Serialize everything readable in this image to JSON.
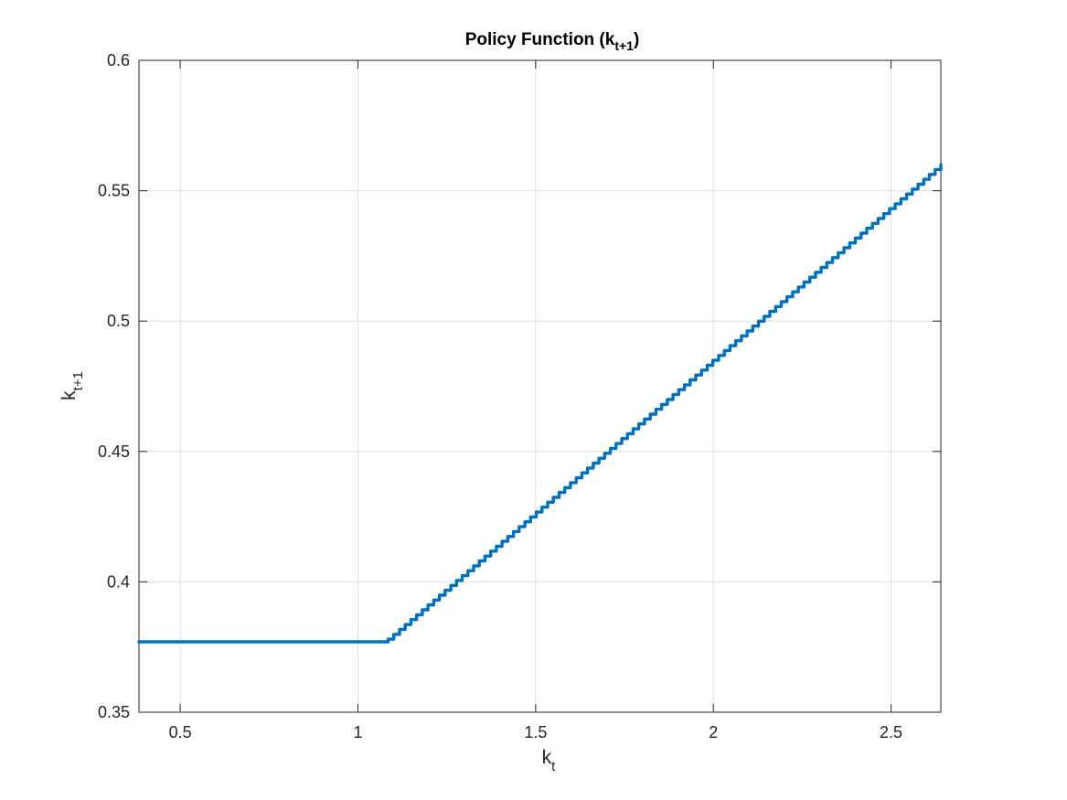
{
  "chart_data": {
    "type": "line",
    "title": {
      "main": "Policy Function (k",
      "sub": "t+1",
      "close": ")"
    },
    "xlabel": {
      "main": "k",
      "sub": "t"
    },
    "ylabel": {
      "main": "k",
      "sub": "t+1"
    },
    "xlim": [
      0.384,
      2.64
    ],
    "ylim": [
      0.35,
      0.6
    ],
    "xticks": [
      0.5,
      1,
      1.5,
      2,
      2.5
    ],
    "xtick_labels": [
      "0.5",
      "1",
      "1.5",
      "2",
      "2.5"
    ],
    "yticks": [
      0.35,
      0.4,
      0.45,
      0.5,
      0.55,
      0.6
    ],
    "ytick_labels": [
      "0.35",
      "0.4",
      "0.45",
      "0.5",
      "0.55",
      "0.6"
    ],
    "grid": true,
    "series": [
      {
        "color": "#0072BD",
        "x": [
          0.384,
          1.085,
          1.085,
          1.1,
          1.2,
          1.3,
          1.4,
          1.5,
          1.6,
          1.7,
          1.8,
          1.9,
          2.0,
          2.1,
          2.2,
          2.3,
          2.4,
          2.5,
          2.6,
          2.64
        ],
        "y": [
          0.377,
          0.377,
          0.378,
          0.3815,
          0.3953,
          0.4089,
          0.4223,
          0.4354,
          0.4484,
          0.4612,
          0.4738,
          0.4863,
          0.4986,
          0.5108,
          0.5228,
          0.5347,
          0.5464,
          0.558,
          0.5694,
          0.56
        ]
      }
    ]
  }
}
